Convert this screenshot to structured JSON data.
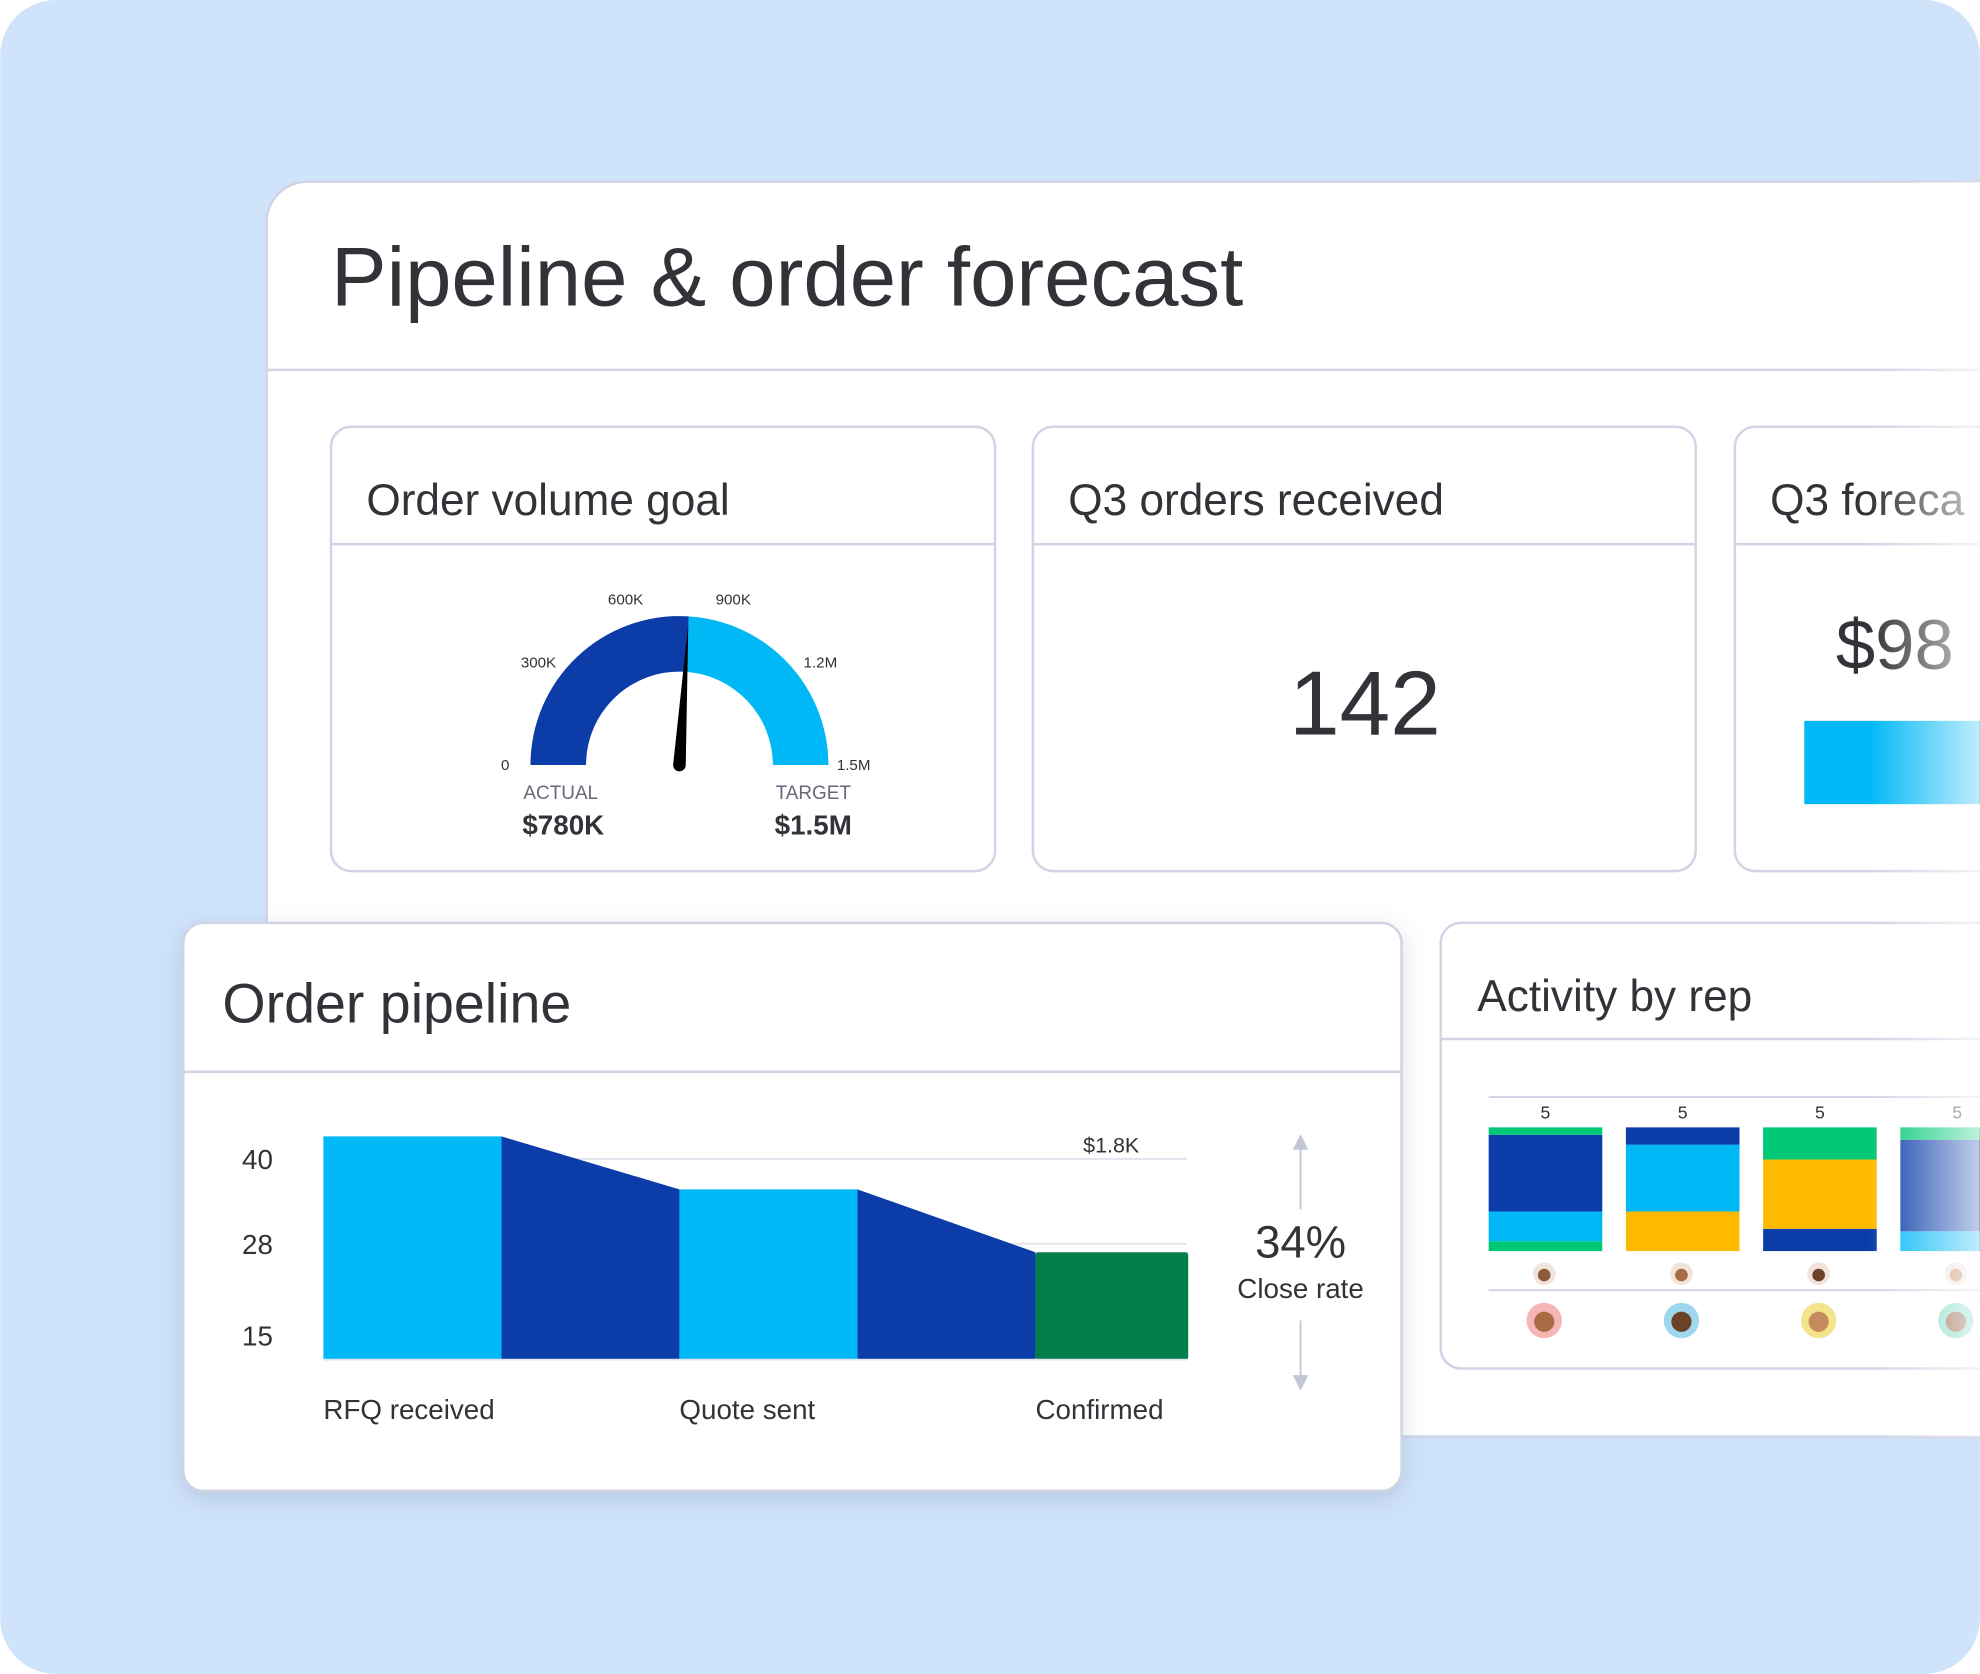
{
  "header": {
    "title": "Pipeline & order forecast"
  },
  "order_volume_goal": {
    "title": "Order volume goal",
    "chart_data": {
      "type": "gauge",
      "lim": [
        0,
        1500000
      ],
      "ticks": [
        0,
        {
          "value": 300000,
          "label": "300K"
        },
        {
          "value": 600000,
          "label": "600K"
        },
        {
          "value": 900000,
          "label": "900K"
        },
        {
          "value": 1200000,
          "label": "1.2M"
        },
        {
          "value": 1500000,
          "label": "1.5M"
        }
      ],
      "actual": {
        "label": "ACTUAL",
        "value": 780000,
        "value_label": "$780K"
      },
      "target": {
        "label": "TARGET",
        "value": 1500000,
        "value_label": "$1.5M"
      },
      "colors": [
        "#0b3ca8",
        "#00b8f5"
      ]
    }
  },
  "q3_orders_received": {
    "title": "Q3 orders received",
    "value": 142
  },
  "q3_forecast": {
    "title": "Q3 foreca",
    "value_text": "$98",
    "bar_color": "#00b8f5"
  },
  "order_pipeline": {
    "title": "Order pipeline",
    "chart_data": {
      "type": "funnel",
      "categories": [
        "RFQ received",
        "Quote sent",
        "Confirmed"
      ],
      "values": [
        43.2,
        35.7,
        26.8
      ],
      "colors": [
        "#00b8f5",
        "#00b8f5",
        "#037f4c"
      ],
      "connector_color": "#0b3ca8",
      "ylim": [
        11.6,
        46.8
      ],
      "yticks": [
        15,
        28,
        40
      ],
      "annotation": "$1.8K",
      "close_rate": {
        "value": "34%",
        "label": "Close rate"
      }
    }
  },
  "activity_by_rep": {
    "title": "Activity by rep",
    "chart_data": {
      "type": "stacked_bar",
      "categories": [
        null,
        null,
        null,
        null
      ],
      "totals": [
        5,
        5,
        5,
        5
      ],
      "ylim": [
        0,
        5
      ],
      "series": [
        {
          "color": "#0b3ca8",
          "values": [
            0,
            0,
            0.9,
            0
          ]
        },
        {
          "color": "#00c875",
          "values": [
            0.4,
            0,
            0,
            0
          ]
        },
        {
          "color": "#00b8f5",
          "values": [
            1.2,
            0,
            0,
            0.8
          ]
        },
        {
          "color": "#ffba00",
          "values": [
            0,
            1.6,
            2.8,
            0
          ]
        },
        {
          "color": "#00b8f5",
          "values": [
            0,
            2.7,
            0,
            0
          ]
        },
        {
          "color": "#0b3ca8",
          "values": [
            3.1,
            0.7,
            0,
            3.7
          ]
        },
        {
          "color": "#00c875",
          "values": [
            0.3,
            0,
            1.3,
            0.5
          ]
        }
      ]
    }
  }
}
